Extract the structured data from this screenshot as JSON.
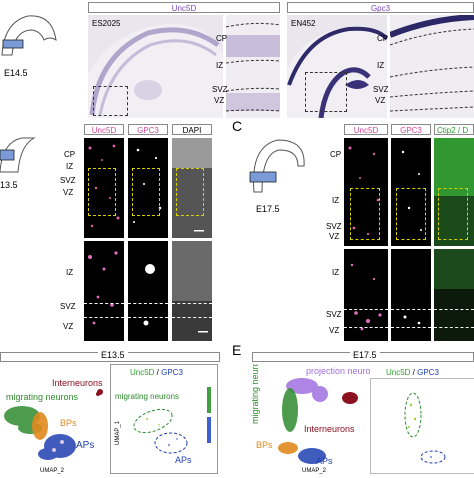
{
  "panel_a": {
    "age": "E14.5",
    "unc5d_header": "Unc5D",
    "gpc3_header": "Gpc3",
    "sample_unc5d": "ES2025",
    "sample_gpc3": "EN452",
    "layer_labels": [
      "CP",
      "IZ",
      "SVZ",
      "VZ"
    ]
  },
  "panel_b": {
    "age": "13.5",
    "headers": [
      "Unc5D",
      "GPC3",
      "DAPI"
    ],
    "layer_labels_top": [
      "CP",
      "IZ",
      "SVZ",
      "VZ"
    ],
    "layer_labels_bottom": [
      "IZ",
      "SVZ",
      "VZ"
    ]
  },
  "panel_c": {
    "letter": "C",
    "age": "E17.5",
    "headers": [
      "Unc5D",
      "GPC3",
      "Ctip2 / D"
    ],
    "layer_labels_top": [
      "CP",
      "IZ",
      "SVZ",
      "VZ"
    ],
    "layer_labels_bottom": [
      "IZ",
      "SVZ",
      "VZ"
    ]
  },
  "panel_d": {
    "age": "E13.5",
    "gene_title_a": "Unc5D",
    "gene_title_sep": " / ",
    "gene_title_b": "GPC3",
    "clusters": [
      "Interneurons",
      "migrating neurons",
      "BPs",
      "APs"
    ],
    "umap_x": "UMAP_2",
    "umap_y": "UMAP_1"
  },
  "panel_e": {
    "letter": "E",
    "age": "E17.5",
    "gene_title_a": "Unc5D",
    "gene_title_sep": " / ",
    "gene_title_b": "GPC3",
    "clusters": [
      "projection neurons",
      "migrating neurons",
      "Interneurons",
      "BPs",
      "APs"
    ],
    "umap_x": "UMAP_2",
    "umap_y": "UMAP_1"
  },
  "colors": {
    "unc5d": "#8a5ac8",
    "gpc3": "#d65ab0",
    "ctip2": "#3fbf3f",
    "interneurons": "#8b1020",
    "migrating": "#2e8b2e",
    "bps": "#e08a1e",
    "aps": "#1f3fb0",
    "projection": "#a070e0"
  }
}
